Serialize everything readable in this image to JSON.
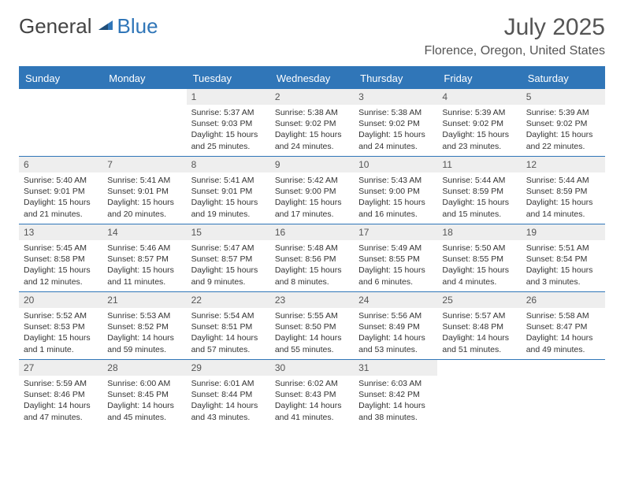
{
  "brand": {
    "part1": "General",
    "part2": "Blue",
    "color1": "#5a5a5a",
    "color2": "#3076b8"
  },
  "title": "July 2025",
  "location": "Florence, Oregon, United States",
  "colors": {
    "header_bg": "#3076b8",
    "header_text": "#ffffff",
    "daynum_bg": "#eeeeee",
    "border": "#3076b8",
    "text": "#333333",
    "background": "#ffffff"
  },
  "fonts": {
    "title_size": 30,
    "location_size": 16,
    "th_size": 13,
    "daynum_size": 12,
    "body_size": 10.5
  },
  "weekday_labels": [
    "Sunday",
    "Monday",
    "Tuesday",
    "Wednesday",
    "Thursday",
    "Friday",
    "Saturday"
  ],
  "weeks": [
    [
      null,
      null,
      {
        "n": "1",
        "sunrise": "5:37 AM",
        "sunset": "9:03 PM",
        "daylight": "15 hours and 25 minutes."
      },
      {
        "n": "2",
        "sunrise": "5:38 AM",
        "sunset": "9:02 PM",
        "daylight": "15 hours and 24 minutes."
      },
      {
        "n": "3",
        "sunrise": "5:38 AM",
        "sunset": "9:02 PM",
        "daylight": "15 hours and 24 minutes."
      },
      {
        "n": "4",
        "sunrise": "5:39 AM",
        "sunset": "9:02 PM",
        "daylight": "15 hours and 23 minutes."
      },
      {
        "n": "5",
        "sunrise": "5:39 AM",
        "sunset": "9:02 PM",
        "daylight": "15 hours and 22 minutes."
      }
    ],
    [
      {
        "n": "6",
        "sunrise": "5:40 AM",
        "sunset": "9:01 PM",
        "daylight": "15 hours and 21 minutes."
      },
      {
        "n": "7",
        "sunrise": "5:41 AM",
        "sunset": "9:01 PM",
        "daylight": "15 hours and 20 minutes."
      },
      {
        "n": "8",
        "sunrise": "5:41 AM",
        "sunset": "9:01 PM",
        "daylight": "15 hours and 19 minutes."
      },
      {
        "n": "9",
        "sunrise": "5:42 AM",
        "sunset": "9:00 PM",
        "daylight": "15 hours and 17 minutes."
      },
      {
        "n": "10",
        "sunrise": "5:43 AM",
        "sunset": "9:00 PM",
        "daylight": "15 hours and 16 minutes."
      },
      {
        "n": "11",
        "sunrise": "5:44 AM",
        "sunset": "8:59 PM",
        "daylight": "15 hours and 15 minutes."
      },
      {
        "n": "12",
        "sunrise": "5:44 AM",
        "sunset": "8:59 PM",
        "daylight": "15 hours and 14 minutes."
      }
    ],
    [
      {
        "n": "13",
        "sunrise": "5:45 AM",
        "sunset": "8:58 PM",
        "daylight": "15 hours and 12 minutes."
      },
      {
        "n": "14",
        "sunrise": "5:46 AM",
        "sunset": "8:57 PM",
        "daylight": "15 hours and 11 minutes."
      },
      {
        "n": "15",
        "sunrise": "5:47 AM",
        "sunset": "8:57 PM",
        "daylight": "15 hours and 9 minutes."
      },
      {
        "n": "16",
        "sunrise": "5:48 AM",
        "sunset": "8:56 PM",
        "daylight": "15 hours and 8 minutes."
      },
      {
        "n": "17",
        "sunrise": "5:49 AM",
        "sunset": "8:55 PM",
        "daylight": "15 hours and 6 minutes."
      },
      {
        "n": "18",
        "sunrise": "5:50 AM",
        "sunset": "8:55 PM",
        "daylight": "15 hours and 4 minutes."
      },
      {
        "n": "19",
        "sunrise": "5:51 AM",
        "sunset": "8:54 PM",
        "daylight": "15 hours and 3 minutes."
      }
    ],
    [
      {
        "n": "20",
        "sunrise": "5:52 AM",
        "sunset": "8:53 PM",
        "daylight": "15 hours and 1 minute."
      },
      {
        "n": "21",
        "sunrise": "5:53 AM",
        "sunset": "8:52 PM",
        "daylight": "14 hours and 59 minutes."
      },
      {
        "n": "22",
        "sunrise": "5:54 AM",
        "sunset": "8:51 PM",
        "daylight": "14 hours and 57 minutes."
      },
      {
        "n": "23",
        "sunrise": "5:55 AM",
        "sunset": "8:50 PM",
        "daylight": "14 hours and 55 minutes."
      },
      {
        "n": "24",
        "sunrise": "5:56 AM",
        "sunset": "8:49 PM",
        "daylight": "14 hours and 53 minutes."
      },
      {
        "n": "25",
        "sunrise": "5:57 AM",
        "sunset": "8:48 PM",
        "daylight": "14 hours and 51 minutes."
      },
      {
        "n": "26",
        "sunrise": "5:58 AM",
        "sunset": "8:47 PM",
        "daylight": "14 hours and 49 minutes."
      }
    ],
    [
      {
        "n": "27",
        "sunrise": "5:59 AM",
        "sunset": "8:46 PM",
        "daylight": "14 hours and 47 minutes."
      },
      {
        "n": "28",
        "sunrise": "6:00 AM",
        "sunset": "8:45 PM",
        "daylight": "14 hours and 45 minutes."
      },
      {
        "n": "29",
        "sunrise": "6:01 AM",
        "sunset": "8:44 PM",
        "daylight": "14 hours and 43 minutes."
      },
      {
        "n": "30",
        "sunrise": "6:02 AM",
        "sunset": "8:43 PM",
        "daylight": "14 hours and 41 minutes."
      },
      {
        "n": "31",
        "sunrise": "6:03 AM",
        "sunset": "8:42 PM",
        "daylight": "14 hours and 38 minutes."
      },
      null,
      null
    ]
  ],
  "labels": {
    "sunrise": "Sunrise:",
    "sunset": "Sunset:",
    "daylight": "Daylight:"
  }
}
